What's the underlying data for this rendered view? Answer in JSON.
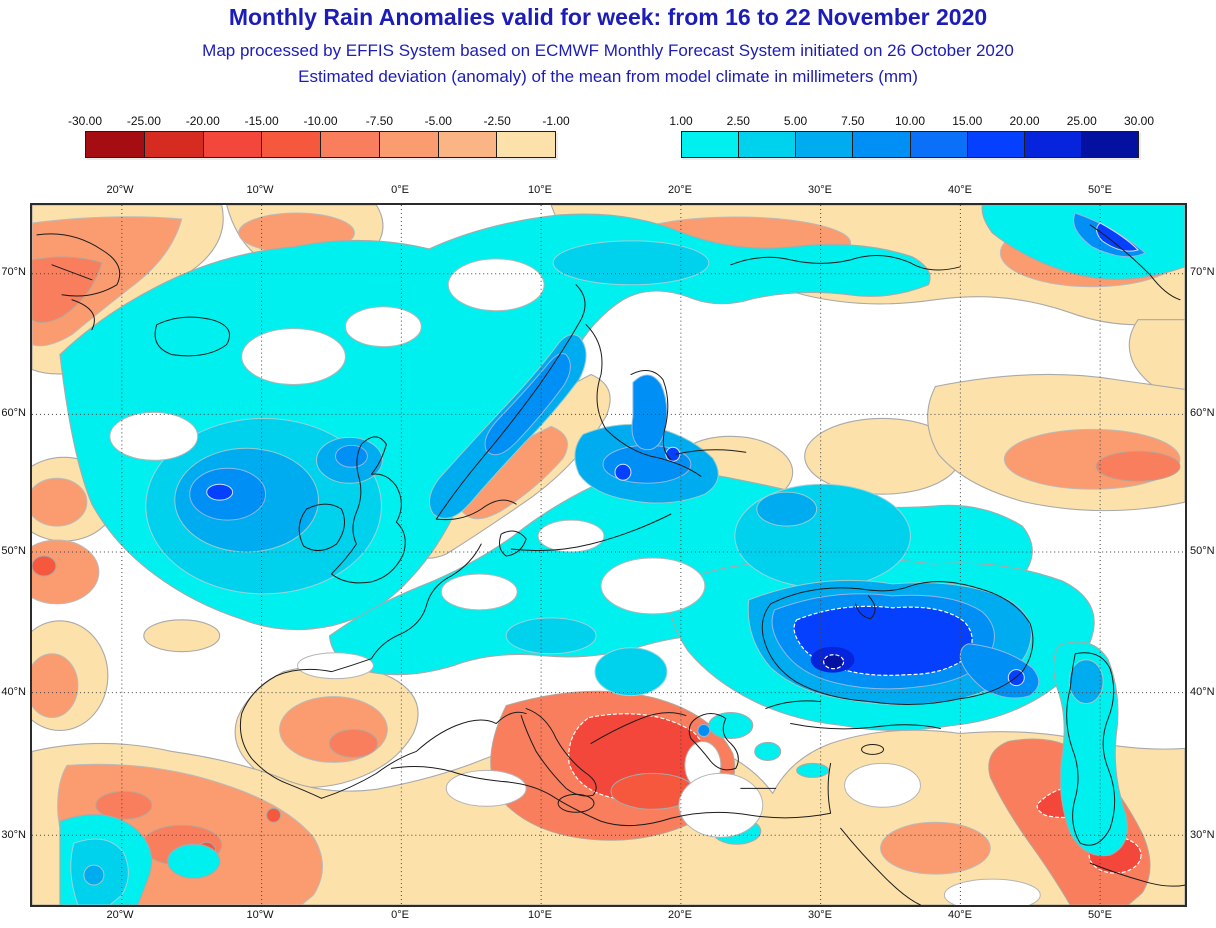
{
  "header": {
    "title": "Monthly Rain Anomalies valid for week: from 16 to 22 November 2020",
    "subtitle1": "Map processed by EFFIS System based on ECMWF Monthly Forecast System initiated on 26 October 2020",
    "subtitle2": "Estimated deviation (anomaly) of the mean from model climate in millimeters (mm)",
    "title_color": "#1c1cb8"
  },
  "legend": {
    "negative": {
      "labels": [
        "-30.00",
        "-25.00",
        "-20.00",
        "-15.00",
        "-10.00",
        "-7.50",
        "-5.00",
        "-2.50",
        "-1.00"
      ],
      "colors": [
        "#a60d13",
        "#d52b20",
        "#f2473a",
        "#f5583c",
        "#f87e5e",
        "#fa9b70",
        "#fbb483",
        "#fce2aa"
      ]
    },
    "positive": {
      "labels": [
        "1.00",
        "2.50",
        "5.00",
        "7.50",
        "10.00",
        "15.00",
        "20.00",
        "25.00",
        "30.00"
      ],
      "colors": [
        "#00f0f0",
        "#00d2ee",
        "#00acf0",
        "#0090f5",
        "#0a70f8",
        "#0540ff",
        "#0524dc",
        "#0410a0"
      ]
    }
  },
  "map": {
    "lon_labels": [
      "20°W",
      "10°W",
      "0°E",
      "10°E",
      "20°E",
      "30°E",
      "40°E",
      "50°E"
    ],
    "lat_labels": [
      "70°N",
      "60°N",
      "50°N",
      "40°N",
      "30°N"
    ]
  }
}
